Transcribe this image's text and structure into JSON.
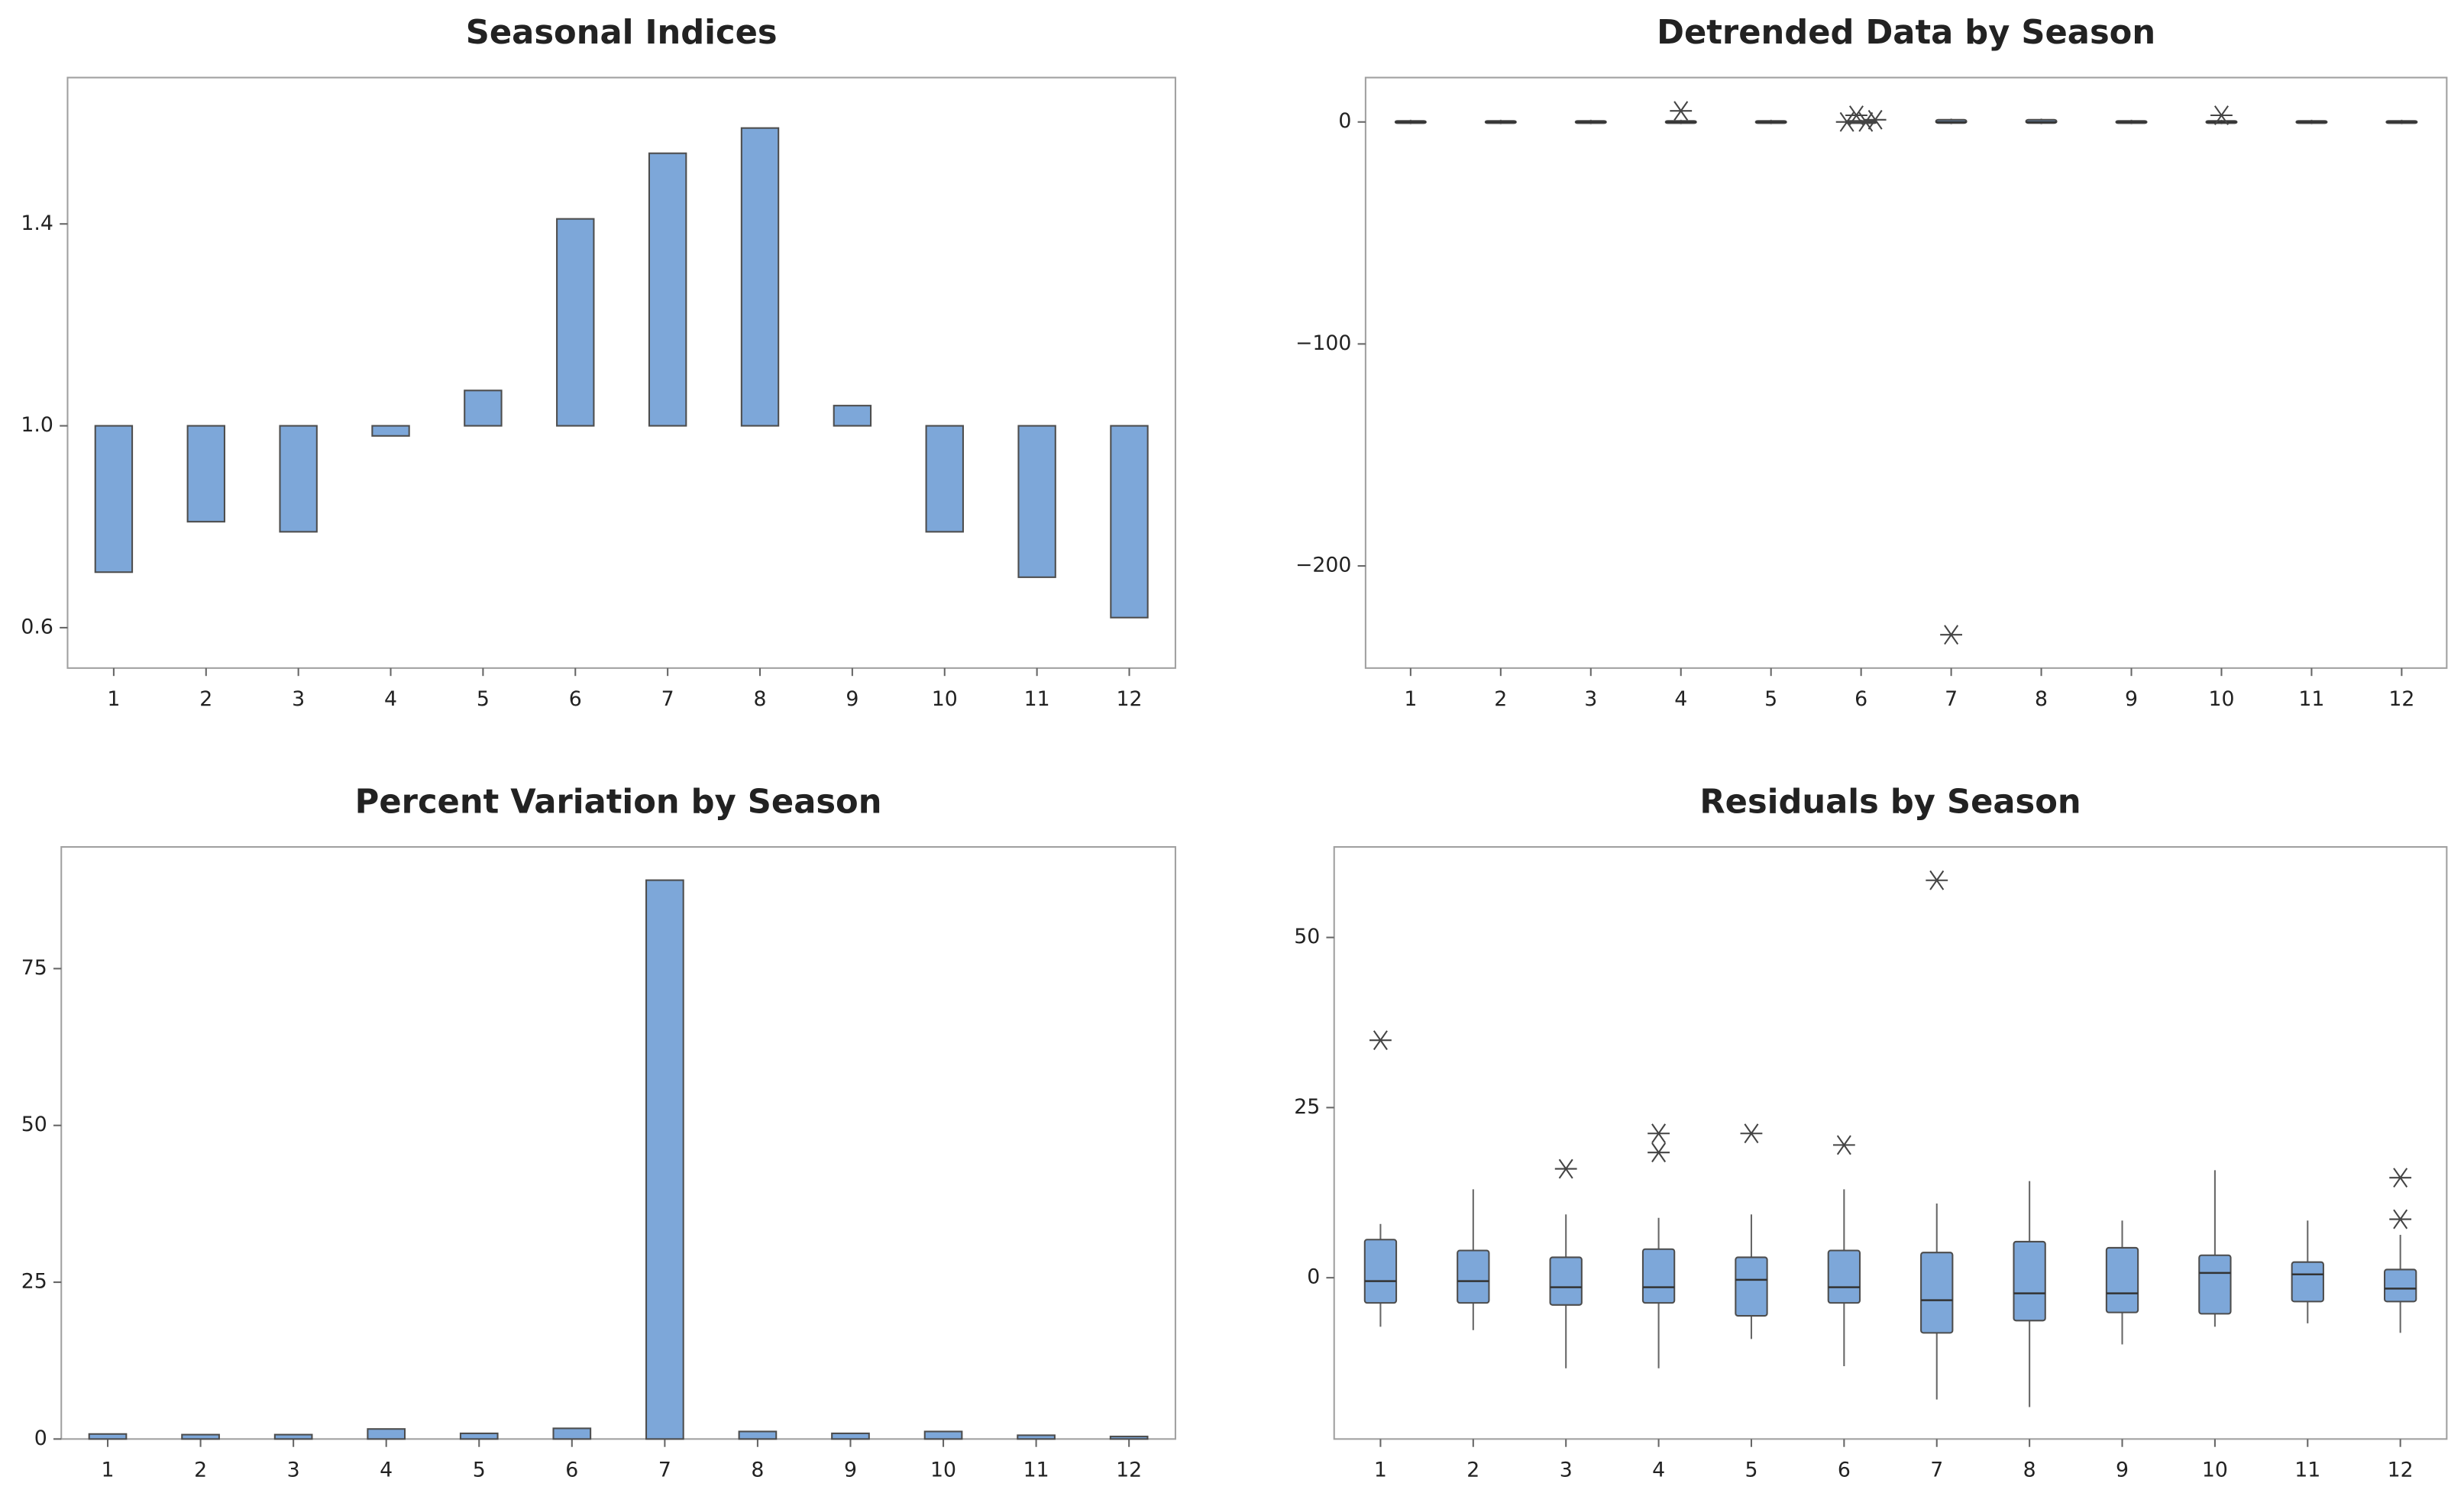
{
  "chart_data": [
    {
      "type": "bar",
      "title": "Seasonal Indices",
      "categories": [
        "1",
        "2",
        "3",
        "4",
        "5",
        "6",
        "7",
        "8",
        "9",
        "10",
        "11",
        "12"
      ],
      "values": [
        0.71,
        0.81,
        0.79,
        0.98,
        1.07,
        1.41,
        1.54,
        1.59,
        1.04,
        0.79,
        0.7,
        0.62
      ],
      "base": 1,
      "color": "#7da7d9",
      "ylim": [
        0.52,
        1.69
      ],
      "yticks": [
        0.6,
        {
          "value": 1,
          "label": "1.0"
        },
        1.4
      ]
    },
    {
      "type": "box",
      "title": "Detrended Data by Season",
      "categories": [
        "1",
        "2",
        "3",
        "4",
        "5",
        "6",
        "7",
        "8",
        "9",
        "10",
        "11",
        "12"
      ],
      "boxes": [
        {
          "min": -1,
          "q1": -0.5,
          "median": 0,
          "q3": 0.5,
          "max": 1,
          "outliers": []
        },
        {
          "min": -1,
          "q1": -0.5,
          "median": 0,
          "q3": 0.5,
          "max": 1,
          "outliers": []
        },
        {
          "min": -1,
          "q1": -0.5,
          "median": 0,
          "q3": 0.5,
          "max": 1,
          "outliers": []
        },
        {
          "min": -1,
          "q1": -0.5,
          "median": 0,
          "q3": 0.5,
          "max": 1,
          "outliers": [
            5
          ]
        },
        {
          "min": -1,
          "q1": -0.5,
          "median": 0,
          "q3": 0.5,
          "max": 1,
          "outliers": []
        },
        {
          "min": -1,
          "q1": -0.5,
          "median": 0,
          "q3": 0.5,
          "max": 1,
          "outliers": [
            0,
            3,
            0,
            1
          ]
        },
        {
          "min": -1,
          "q1": -0.5,
          "median": 0,
          "q3": 1,
          "max": 1.5,
          "outliers": [
            -231
          ]
        },
        {
          "min": -1,
          "q1": -0.5,
          "median": 0,
          "q3": 1,
          "max": 1.5,
          "outliers": []
        },
        {
          "min": -1,
          "q1": -0.5,
          "median": 0,
          "q3": 0.5,
          "max": 1,
          "outliers": []
        },
        {
          "min": -1,
          "q1": -0.5,
          "median": 0,
          "q3": 0.5,
          "max": 1,
          "outliers": [
            3
          ]
        },
        {
          "min": -1,
          "q1": -0.5,
          "median": 0,
          "q3": 0.5,
          "max": 1,
          "outliers": []
        },
        {
          "min": -1,
          "q1": -0.5,
          "median": 0,
          "q3": 0.5,
          "max": 1,
          "outliers": []
        }
      ],
      "color": "#7da7d9",
      "ylim": [
        -246,
        20
      ],
      "yticks": [
        {
          "value": -200,
          "label": "−200"
        },
        {
          "value": -100,
          "label": "−100"
        },
        0
      ]
    },
    {
      "type": "bar",
      "title": "Percent Variation by Season",
      "categories": [
        "1",
        "2",
        "3",
        "4",
        "5",
        "6",
        "7",
        "8",
        "9",
        "10",
        "11",
        "12"
      ],
      "values": [
        0.8,
        0.7,
        0.7,
        1.6,
        0.9,
        1.7,
        89.1,
        1.2,
        0.9,
        1.2,
        0.6,
        0.4
      ],
      "color": "#7da7d9",
      "ylim": [
        0,
        94.4
      ],
      "yticks": [
        0,
        25,
        50,
        75
      ]
    },
    {
      "type": "box",
      "title": "Residuals by Season",
      "categories": [
        "1",
        "2",
        "3",
        "4",
        "5",
        "6",
        "7",
        "8",
        "9",
        "10",
        "11",
        "12"
      ],
      "boxes": [
        {
          "min": -7.2,
          "q1": -3.7,
          "median": -0.5,
          "q3": 5.6,
          "max": 7.9,
          "outliers": [
            34.9
          ]
        },
        {
          "min": -7.7,
          "q1": -3.7,
          "median": -0.5,
          "q3": 4,
          "max": 13,
          "outliers": []
        },
        {
          "min": -13.3,
          "q1": -4,
          "median": -1.4,
          "q3": 3,
          "max": 9.3,
          "outliers": [
            16
          ]
        },
        {
          "min": -13.3,
          "q1": -3.7,
          "median": -1.4,
          "q3": 4.2,
          "max": 8.8,
          "outliers": [
            21.2,
            18.4
          ]
        },
        {
          "min": -9,
          "q1": -5.6,
          "median": -0.3,
          "q3": 3,
          "max": 9.3,
          "outliers": [
            21.2
          ]
        },
        {
          "min": -13,
          "q1": -3.7,
          "median": -1.4,
          "q3": 4,
          "max": 13,
          "outliers": [
            19.5
          ]
        },
        {
          "min": -17.9,
          "q1": -8.1,
          "median": -3.3,
          "q3": 3.7,
          "max": 10.9,
          "outliers": [
            58.4
          ]
        },
        {
          "min": -19,
          "q1": -6.3,
          "median": -2.3,
          "q3": 5.3,
          "max": 14.2,
          "outliers": []
        },
        {
          "min": -9.8,
          "q1": -5.1,
          "median": -2.3,
          "q3": 4.4,
          "max": 8.4,
          "outliers": []
        },
        {
          "min": -7.2,
          "q1": -5.3,
          "median": 0.7,
          "q3": 3.3,
          "max": 15.8,
          "outliers": []
        },
        {
          "min": -6.7,
          "q1": -3.5,
          "median": 0.5,
          "q3": 2.3,
          "max": 8.4,
          "outliers": []
        },
        {
          "min": -8.1,
          "q1": -3.5,
          "median": -1.6,
          "q3": 1.2,
          "max": 6.3,
          "outliers": [
            14.7,
            8.6
          ]
        }
      ],
      "color": "#7da7d9",
      "ylim": [
        -23.7,
        63.3
      ],
      "yticks": [
        0,
        25,
        50
      ]
    }
  ]
}
